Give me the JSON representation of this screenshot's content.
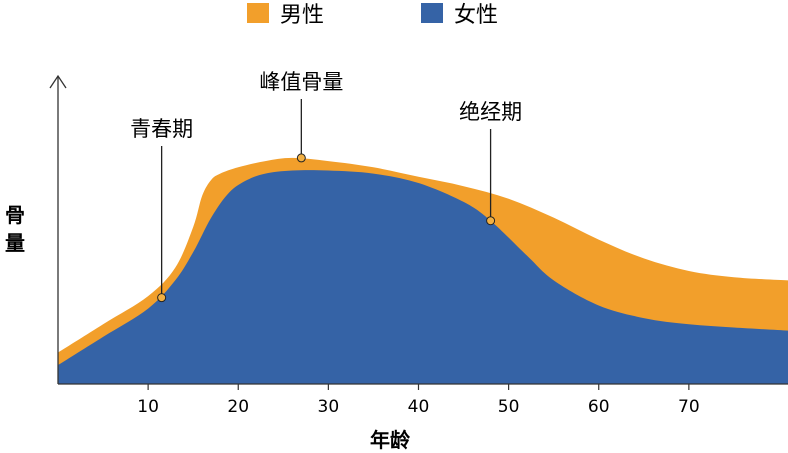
{
  "chart_data": {
    "type": "area",
    "xlabel": "年龄",
    "ylabel": "骨量",
    "xticks": [
      10,
      20,
      30,
      40,
      50,
      60,
      70
    ],
    "xlim": [
      0,
      81
    ],
    "ylim": [
      0,
      100
    ],
    "legend": "top-center",
    "series": [
      {
        "name": "男性",
        "color": "#f29f2b",
        "x": [
          0,
          5,
          10,
          13,
          15,
          16,
          17,
          18,
          20,
          23,
          26,
          30,
          35,
          40,
          45,
          50,
          55,
          60,
          65,
          70,
          75,
          81
        ],
        "y": [
          10,
          19,
          28,
          37,
          50,
          60,
          65,
          67,
          69,
          71,
          72,
          71,
          69,
          66,
          63,
          59,
          53,
          46,
          40,
          36,
          34,
          33
        ]
      },
      {
        "name": "女性",
        "color": "#3563a6",
        "x": [
          0,
          5,
          10,
          13,
          15,
          17,
          19,
          21,
          23,
          26,
          30,
          35,
          40,
          45,
          48,
          52,
          55,
          60,
          65,
          70,
          75,
          81
        ],
        "y": [
          6,
          15,
          24,
          33,
          42,
          53,
          61,
          65,
          67,
          68,
          68,
          67,
          64,
          58,
          52,
          41,
          33,
          25,
          21,
          19,
          18,
          17
        ]
      }
    ],
    "annotations": [
      {
        "text": "青春期",
        "x": 11.5,
        "y": 27.5
      },
      {
        "text": "峰值骨量",
        "x": 27,
        "y": 72
      },
      {
        "text": "绝经期",
        "x": 48,
        "y": 52
      }
    ]
  }
}
